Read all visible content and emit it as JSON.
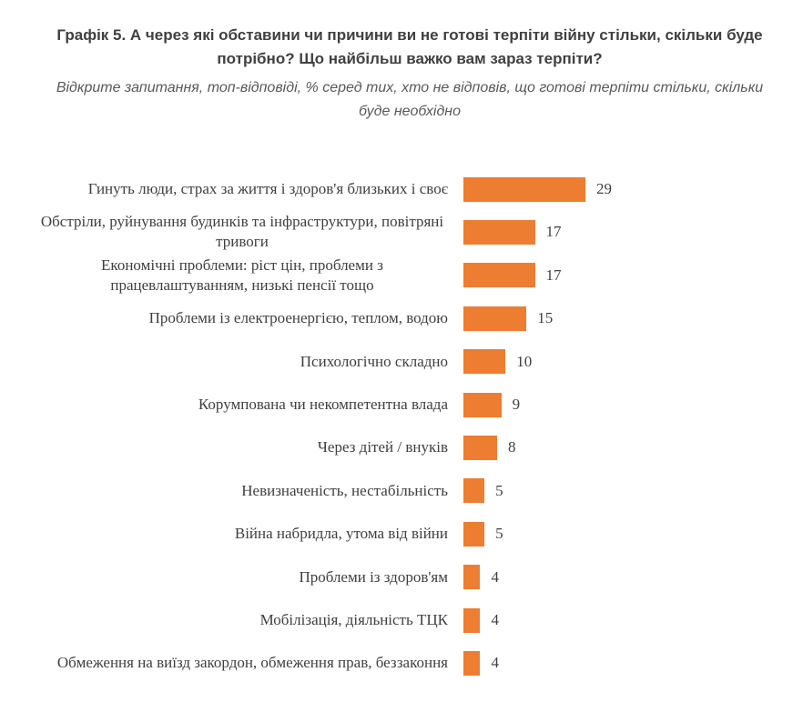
{
  "chart_data": {
    "type": "bar",
    "orientation": "horizontal",
    "title": "Графік 5. А через які обставини чи причини ви не готові терпіти війну стільки, скільки буде потрібно? Що найбільш важко вам зараз терпіти?",
    "subtitle": "Відкрите запитання, топ-відповіді, % серед тих, хто не відповів, що готові терпіти стільки, скільки буде необхідно",
    "categories": [
      "Гинуть люди, страх за життя і здоров'я близьких і своє",
      "Обстріли, руйнування будинків та інфраструктури, повітряні тривоги",
      "Економічні проблеми: ріст цін, проблеми з працевлаштуванням, низькі пенсії тощо",
      "Проблеми із електроенергією, теплом, водою",
      "Психологічно складно",
      "Корумпована чи некомпетентна влада",
      "Через дітей / внуків",
      "Невизначеність, нестабільність",
      "Війна набридла, утома від війни",
      "Проблеми із здоров'ям",
      "Мобілізація, діяльність ТЦК",
      "Обмеження на виїзд закордон, обмеження прав, беззаконня"
    ],
    "values": [
      29,
      17,
      17,
      15,
      10,
      9,
      8,
      5,
      5,
      4,
      4,
      4
    ],
    "color": "#ed7d31"
  }
}
